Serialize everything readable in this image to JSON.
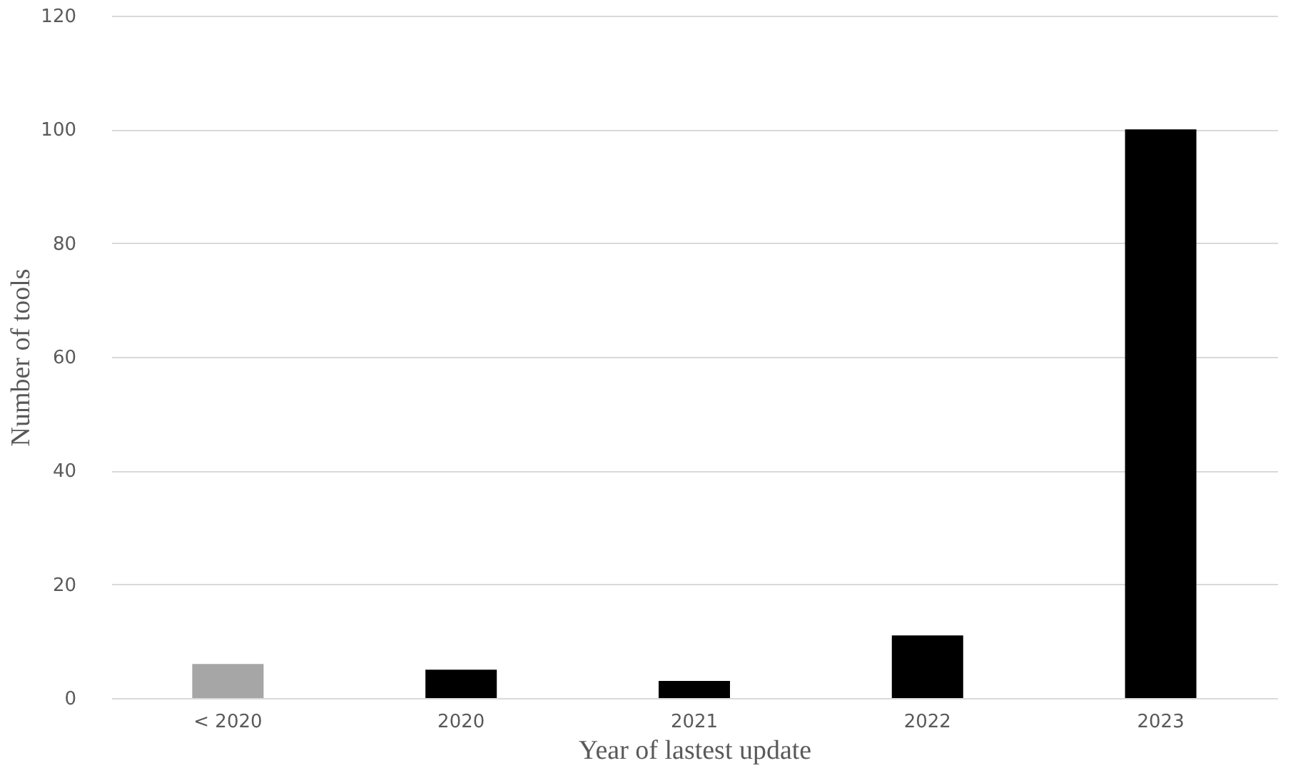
{
  "chart_data": {
    "type": "bar",
    "xlabel": "Year of lastest update",
    "ylabel": "Number of tools",
    "categories": [
      "< 2020",
      "2020",
      "2021",
      "2022",
      "2023"
    ],
    "values": [
      6,
      5,
      3,
      11,
      100
    ],
    "colors": [
      "#a6a6a6",
      "#000000",
      "#000000",
      "#000000",
      "#000000"
    ],
    "ylim": [
      0,
      120
    ],
    "yticks": [
      0,
      20,
      40,
      60,
      80,
      100,
      120
    ],
    "grid": "y"
  }
}
